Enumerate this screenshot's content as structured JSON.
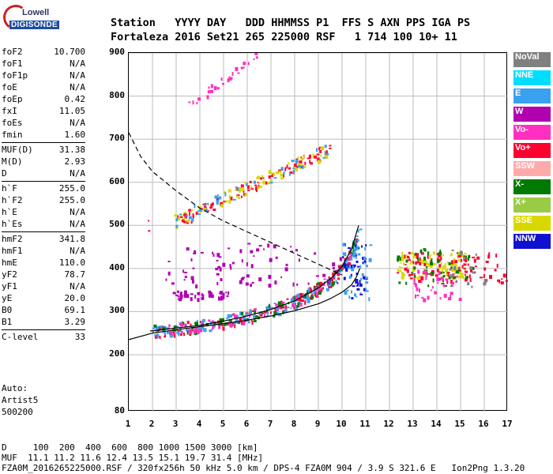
{
  "logo": {
    "line1": "Lowell",
    "line2": "DIGISONDE"
  },
  "header": {
    "line1": "Station   YYYY DAY   DDD HHMMSS P1  FFS S AXN PPS IGA PS",
    "line2": "Fortaleza 2016 Set21 265 225000 RSF   1 714 100 10+ 11"
  },
  "params": [
    {
      "group": [
        {
          "name": "foF2",
          "value": "10.700"
        },
        {
          "name": "foF1",
          "value": "N/A"
        },
        {
          "name": "foF1p",
          "value": "N/A"
        },
        {
          "name": "foE",
          "value": "N/A"
        },
        {
          "name": "foEp",
          "value": "0.42"
        },
        {
          "name": "fxI",
          "value": "11.05"
        },
        {
          "name": "foEs",
          "value": "N/A"
        },
        {
          "name": "fmin",
          "value": "1.60"
        }
      ]
    },
    {
      "group": [
        {
          "name": "MUF(D)",
          "value": "31.38"
        },
        {
          "name": "M(D)",
          "value": "2.93"
        },
        {
          "name": "D",
          "value": "N/A"
        }
      ]
    },
    {
      "group": [
        {
          "name": "h`F",
          "value": "255.0"
        },
        {
          "name": "h`F2",
          "value": "255.0"
        },
        {
          "name": "h`E",
          "value": "N/A"
        },
        {
          "name": "h`Es",
          "value": "N/A"
        }
      ]
    },
    {
      "group": [
        {
          "name": "hmF2",
          "value": "341.8"
        },
        {
          "name": "hmF1",
          "value": "N/A"
        },
        {
          "name": "hmE",
          "value": "110.0"
        },
        {
          "name": "yF2",
          "value": "78.7"
        },
        {
          "name": "yF1",
          "value": "N/A"
        },
        {
          "name": "yE",
          "value": "20.0"
        },
        {
          "name": "B0",
          "value": "69.1"
        },
        {
          "name": "B1",
          "value": "3.29"
        }
      ]
    },
    {
      "group": [
        {
          "name": "C-level",
          "value": "33"
        }
      ]
    }
  ],
  "auto": {
    "line1": "Auto:",
    "line2": "Artist5",
    "line3": "500200"
  },
  "legend": [
    {
      "label": "NoVal",
      "color": "#808080"
    },
    {
      "label": "NNE",
      "color": "#00ddff"
    },
    {
      "label": "E",
      "color": "#3aa0f0"
    },
    {
      "label": "W",
      "color": "#b000b0"
    },
    {
      "label": "Vo-",
      "color": "#ff30c0"
    },
    {
      "label": "Vo+",
      "color": "#ff0030"
    },
    {
      "label": "SSW",
      "color": "#ffaaaa"
    },
    {
      "label": "X-",
      "color": "#007a00"
    },
    {
      "label": "X+",
      "color": "#99cc44"
    },
    {
      "label": "SSE",
      "color": "#d8d800"
    },
    {
      "label": "NNW",
      "color": "#1010d0"
    }
  ],
  "axes": {
    "x_ticks": [
      "1",
      "2",
      "3",
      "4",
      "5",
      "6",
      "7",
      "8",
      "9",
      "10",
      "11",
      "12",
      "13",
      "14",
      "15",
      "16",
      "17"
    ],
    "y_ticks": [
      "900",
      "800",
      "700",
      "600",
      "500",
      "400",
      "300",
      "200",
      "80"
    ]
  },
  "bottom": {
    "line1": "D     100  200  400  600  800 1000 1500 3000 [km]",
    "line2": "MUF  11.1 11.2 11.6 12.4 13.5 15.1 19.7 31.4 [MHz]",
    "line3": "FZA0M_2016265225000.RSF / 320fx256h 50 kHz 5.0 km / DPS-4 FZA0M 904 / 3.9 S 321.6 E   Ion2Png 1.3.20"
  },
  "chart_data": {
    "type": "scatter",
    "xlim": [
      1,
      17
    ],
    "ylim": [
      80,
      900
    ],
    "grid": true,
    "profile_solid": [
      [
        1.0,
        235
      ],
      [
        2,
        250
      ],
      [
        3,
        258
      ],
      [
        4,
        265
      ],
      [
        5,
        272
      ],
      [
        6,
        280
      ],
      [
        7,
        290
      ],
      [
        8,
        302
      ],
      [
        9,
        318
      ],
      [
        9.5,
        330
      ],
      [
        10,
        345
      ],
      [
        10.4,
        362
      ],
      [
        10.6,
        380
      ],
      [
        10.75,
        400
      ]
    ],
    "trace_solid": [
      [
        1.9,
        255
      ],
      [
        3,
        262
      ],
      [
        4,
        268
      ],
      [
        5,
        278
      ],
      [
        6,
        290
      ],
      [
        7,
        305
      ],
      [
        8,
        325
      ],
      [
        9,
        355
      ],
      [
        9.6,
        380
      ],
      [
        10,
        405
      ],
      [
        10.4,
        445
      ],
      [
        10.7,
        500
      ]
    ],
    "dashed_curve": [
      [
        1.0,
        715
      ],
      [
        1.5,
        660
      ],
      [
        2,
        625
      ],
      [
        3,
        580
      ],
      [
        4,
        540
      ],
      [
        5,
        510
      ],
      [
        6,
        485
      ],
      [
        7,
        460
      ],
      [
        8,
        435
      ],
      [
        9,
        410
      ],
      [
        9.6,
        395
      ],
      [
        10,
        385
      ]
    ],
    "clusters": [
      {
        "color": "#ff0030",
        "x": [
          1.8,
          10.6
        ],
        "y": [
          250,
          300
        ],
        "count": 140,
        "follows": "trace"
      },
      {
        "color": "#3aa0f0",
        "x": [
          2.0,
          10.8
        ],
        "y": [
          260,
          320
        ],
        "count": 140,
        "follows": "trace"
      },
      {
        "color": "#007a00",
        "x": [
          2.0,
          10.6
        ],
        "y": [
          255,
          305
        ],
        "count": 70,
        "follows": "trace"
      },
      {
        "color": "#ff30c0",
        "x": [
          2.0,
          10.5
        ],
        "y": [
          255,
          300
        ],
        "count": 60,
        "follows": "trace"
      },
      {
        "color": "#b000b0",
        "x": [
          2.8,
          5.2
        ],
        "y": [
          330,
          350
        ],
        "count": 40
      },
      {
        "color": "#b000b0",
        "x": [
          2.5,
          10.0
        ],
        "y": [
          360,
          460
        ],
        "count": 80
      },
      {
        "color": "#ff0030",
        "x": [
          3.0,
          9.5
        ],
        "y": [
          510,
          680
        ],
        "count": 90,
        "follows": "upper"
      },
      {
        "color": "#d8d800",
        "x": [
          2.8,
          9.5
        ],
        "y": [
          510,
          680
        ],
        "count": 70,
        "follows": "upper"
      },
      {
        "color": "#3aa0f0",
        "x": [
          2.8,
          9.5
        ],
        "y": [
          515,
          690
        ],
        "count": 40,
        "follows": "upper"
      },
      {
        "color": "#ff30c0",
        "x": [
          3.5,
          6.5
        ],
        "y": [
          780,
          900
        ],
        "count": 30,
        "follows": "top"
      },
      {
        "color": "#d8d800",
        "x": [
          12.3,
          15.2
        ],
        "y": [
          380,
          440
        ],
        "count": 110
      },
      {
        "color": "#ff0030",
        "x": [
          12.3,
          17.0
        ],
        "y": [
          370,
          440
        ],
        "count": 90
      },
      {
        "color": "#007a00",
        "x": [
          12.3,
          15.5
        ],
        "y": [
          360,
          450
        ],
        "count": 50
      },
      {
        "color": "#ff30c0",
        "x": [
          13.0,
          15.0
        ],
        "y": [
          330,
          400
        ],
        "count": 40
      },
      {
        "color": "#1010d0",
        "x": [
          10.0,
          11.0
        ],
        "y": [
          330,
          460
        ],
        "count": 40
      },
      {
        "color": "#3aa0f0",
        "x": [
          10.0,
          11.2
        ],
        "y": [
          330,
          470
        ],
        "count": 40
      },
      {
        "color": "#808080",
        "x": [
          14.5,
          16.0
        ],
        "y": [
          360,
          450
        ],
        "count": 15
      }
    ]
  }
}
